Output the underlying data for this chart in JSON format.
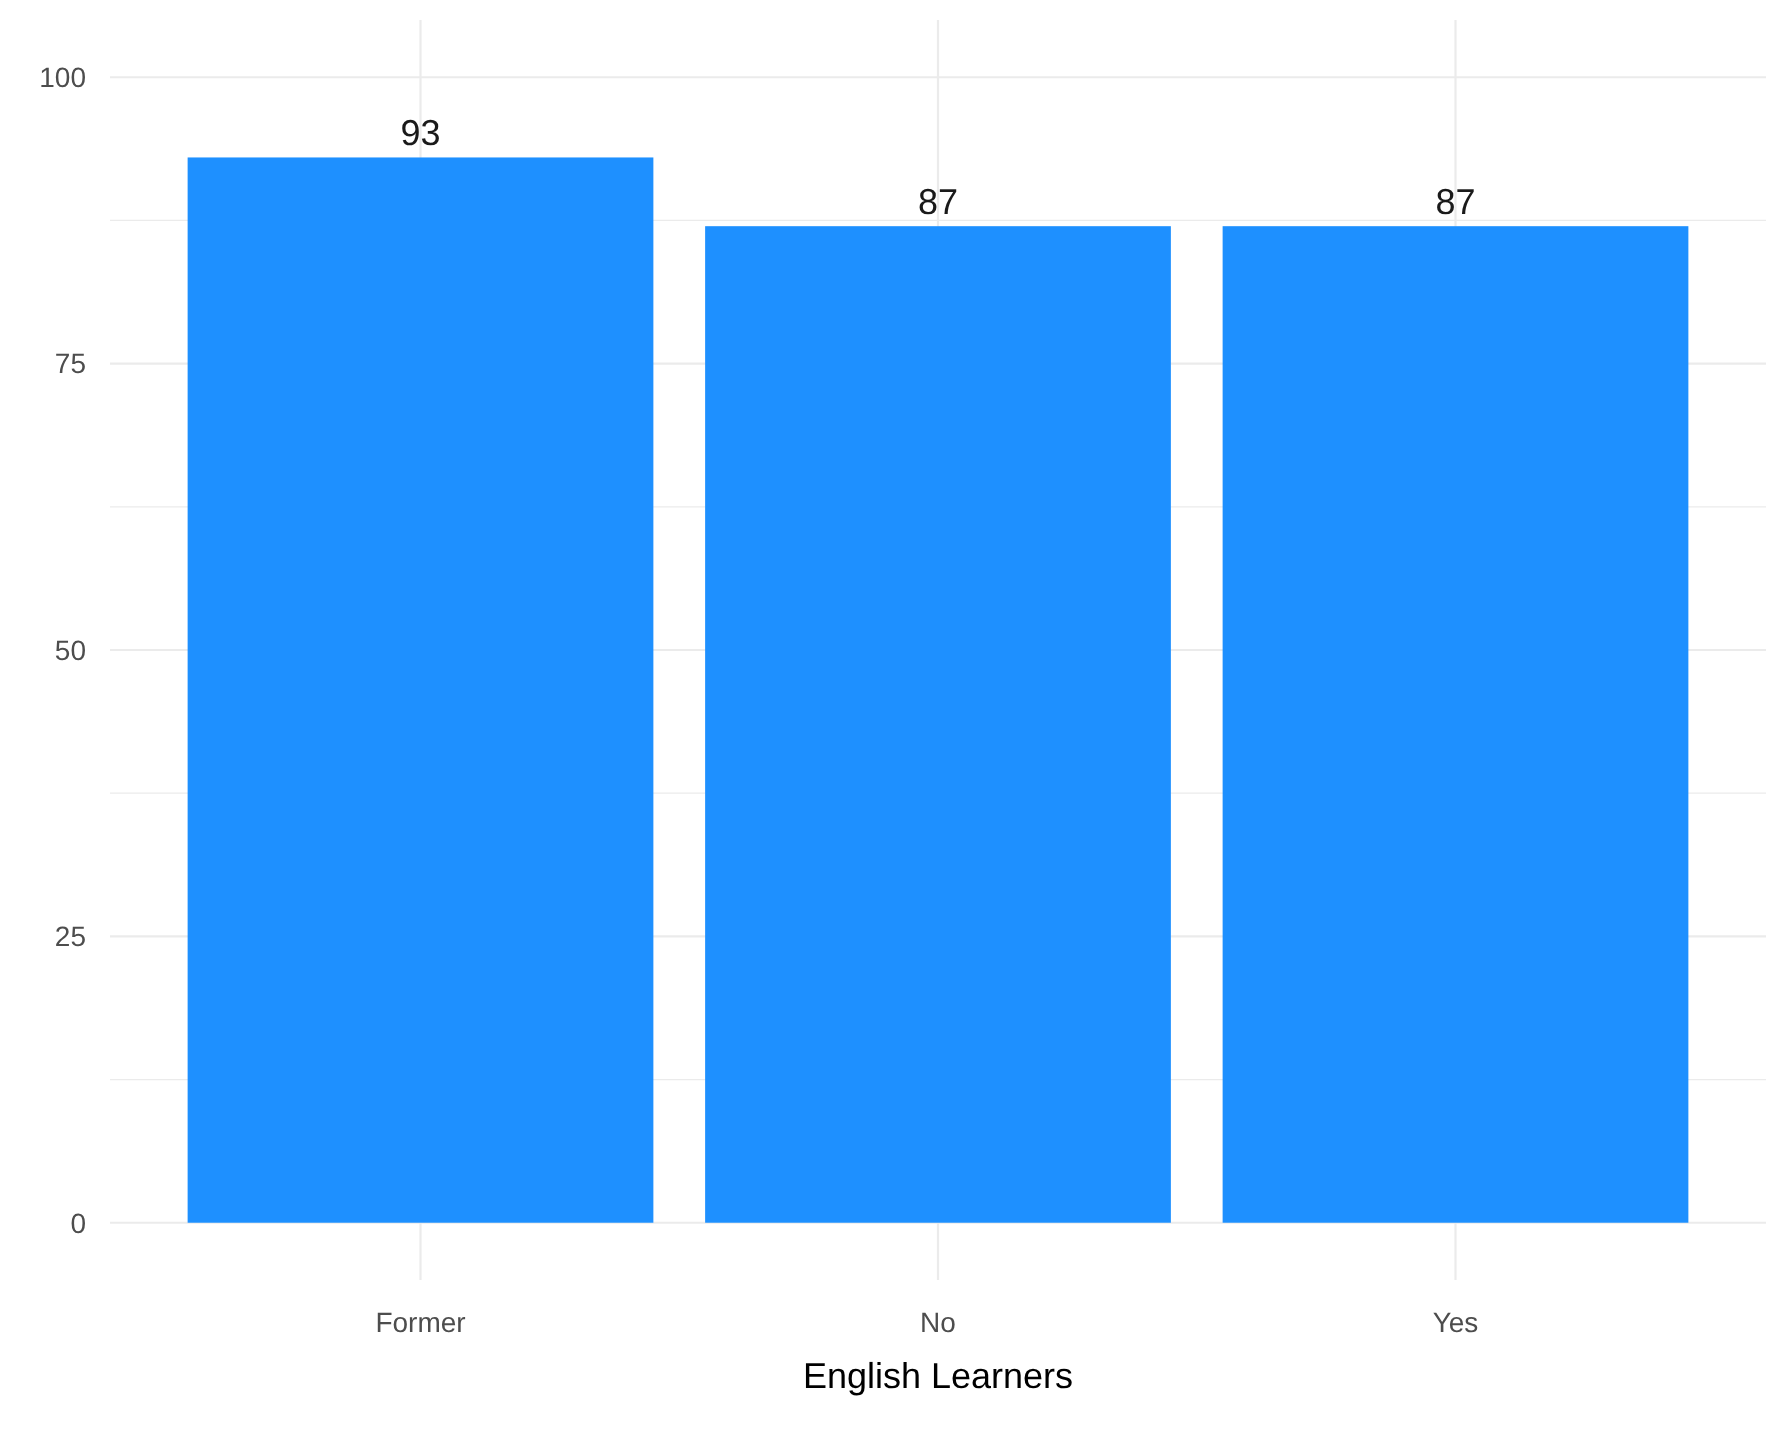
{
  "chart_data": {
    "type": "bar",
    "xlabel": "English Learners",
    "categories": [
      "Former",
      "No",
      "Yes"
    ],
    "values": [
      93,
      87,
      87
    ],
    "color": "#1e90ff",
    "ylim": [
      -5,
      105
    ],
    "yticks": [
      0,
      {
        "value": 12.5,
        "label": null
      },
      25,
      {
        "value": 37.5,
        "label": null
      },
      50,
      {
        "value": 62.5,
        "label": null
      },
      75,
      {
        "value": 87.5,
        "label": null
      },
      100
    ],
    "grid": true,
    "data_labels": true
  }
}
